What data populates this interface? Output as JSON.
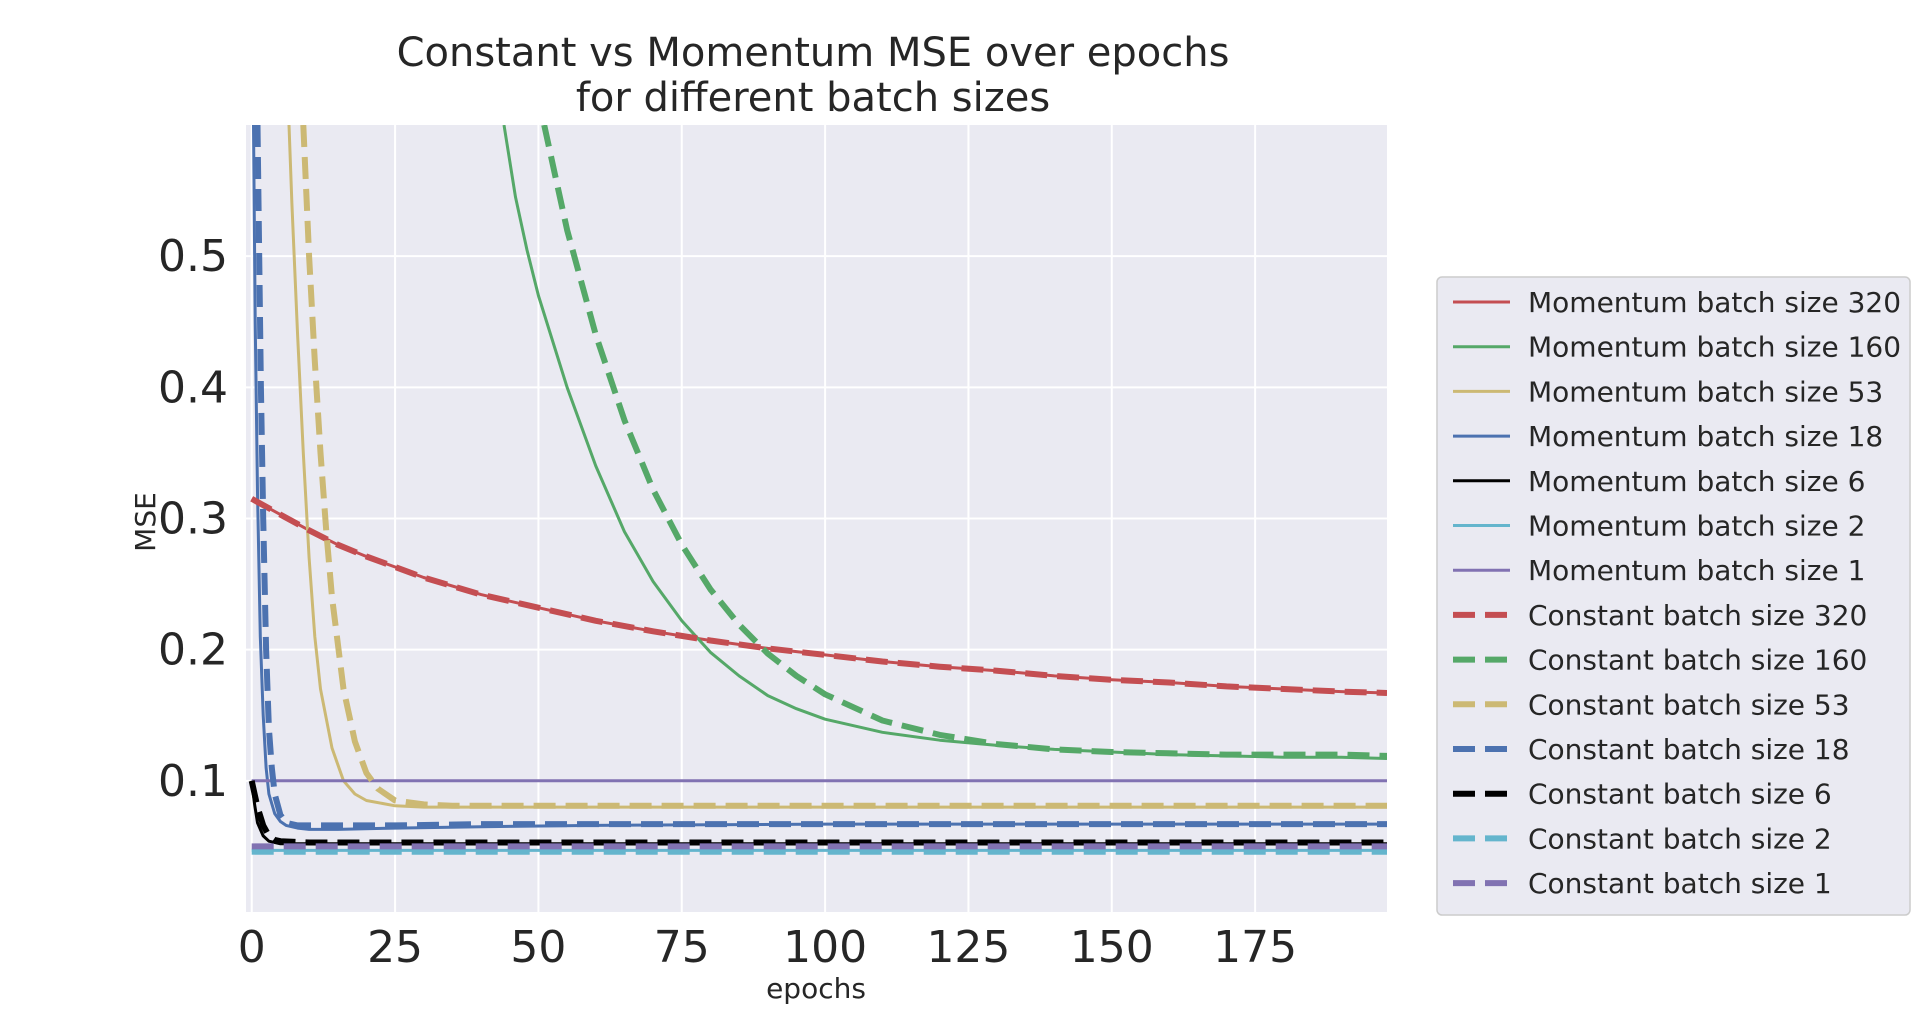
{
  "chart_data": {
    "type": "line",
    "title_lines": [
      "Constant vs Momentum MSE over epochs",
      "for different batch sizes"
    ],
    "xlabel": "epochs",
    "ylabel": "MSE",
    "xlim": [
      -1,
      198
    ],
    "ylim": [
      0.0,
      0.6
    ],
    "xticks": [
      0,
      25,
      50,
      75,
      100,
      125,
      150,
      175
    ],
    "yticks": [
      0.1,
      0.2,
      0.3,
      0.4,
      0.5
    ],
    "grid": true,
    "legend_position": "outside-right",
    "background": "#eaeaf2",
    "series": [
      {
        "name": "Momentum batch size 320",
        "color": "#c44e52",
        "style": "solid",
        "x": [
          0,
          5,
          10,
          15,
          20,
          25,
          30,
          40,
          50,
          60,
          70,
          80,
          90,
          100,
          110,
          120,
          130,
          140,
          150,
          160,
          170,
          180,
          190,
          198
        ],
        "y": [
          0.315,
          0.303,
          0.291,
          0.28,
          0.271,
          0.263,
          0.255,
          0.242,
          0.232,
          0.222,
          0.214,
          0.207,
          0.201,
          0.196,
          0.191,
          0.187,
          0.184,
          0.18,
          0.177,
          0.175,
          0.172,
          0.17,
          0.168,
          0.167
        ]
      },
      {
        "name": "Momentum batch size 160",
        "color": "#55a868",
        "style": "solid",
        "x": [
          44,
          46,
          48,
          50,
          55,
          60,
          65,
          70,
          75,
          80,
          85,
          90,
          95,
          100,
          110,
          120,
          130,
          140,
          150,
          160,
          170,
          180,
          190,
          198
        ],
        "y": [
          0.6,
          0.545,
          0.505,
          0.47,
          0.4,
          0.34,
          0.29,
          0.252,
          0.222,
          0.198,
          0.18,
          0.165,
          0.155,
          0.147,
          0.137,
          0.131,
          0.127,
          0.124,
          0.122,
          0.12,
          0.119,
          0.118,
          0.118,
          0.117
        ]
      },
      {
        "name": "Momentum batch size 53",
        "color": "#ccb974",
        "style": "solid",
        "x": [
          6.5,
          7,
          8,
          9,
          10,
          11,
          12,
          14,
          16,
          18,
          20,
          25,
          30,
          40,
          60,
          100,
          150,
          198
        ],
        "y": [
          0.6,
          0.54,
          0.44,
          0.35,
          0.27,
          0.21,
          0.17,
          0.125,
          0.1,
          0.09,
          0.085,
          0.081,
          0.08,
          0.08,
          0.08,
          0.08,
          0.08,
          0.08
        ]
      },
      {
        "name": "Momentum batch size 18",
        "color": "#4c72b0",
        "style": "solid",
        "x": [
          0.3,
          0.6,
          1.0,
          1.5,
          2.0,
          2.5,
          3,
          4,
          5,
          6,
          8,
          10,
          15,
          25,
          40,
          60,
          100,
          150,
          198
        ],
        "y": [
          0.6,
          0.45,
          0.32,
          0.21,
          0.15,
          0.11,
          0.09,
          0.075,
          0.069,
          0.066,
          0.064,
          0.063,
          0.063,
          0.064,
          0.065,
          0.066,
          0.067,
          0.067,
          0.067
        ]
      },
      {
        "name": "Momentum batch size 6",
        "color": "#000000",
        "style": "solid",
        "x": [
          0,
          0.5,
          1,
          2,
          3,
          5,
          10,
          50,
          100,
          150,
          198
        ],
        "y": [
          0.1,
          0.082,
          0.068,
          0.058,
          0.054,
          0.052,
          0.052,
          0.052,
          0.052,
          0.052,
          0.052
        ]
      },
      {
        "name": "Momentum batch size 2",
        "color": "#64b5cd",
        "style": "solid",
        "x": [
          0,
          198
        ],
        "y": [
          0.047,
          0.047
        ]
      },
      {
        "name": "Momentum batch size 1",
        "color": "#8172b2",
        "style": "solid",
        "x": [
          0,
          198
        ],
        "y": [
          0.1,
          0.1
        ]
      },
      {
        "name": "Constant batch size 320",
        "color": "#c44e52",
        "style": "dashed",
        "x": [
          0,
          5,
          10,
          15,
          20,
          25,
          30,
          40,
          50,
          60,
          70,
          80,
          90,
          100,
          110,
          120,
          130,
          140,
          150,
          160,
          170,
          180,
          190,
          198
        ],
        "y": [
          0.315,
          0.303,
          0.291,
          0.28,
          0.271,
          0.263,
          0.255,
          0.242,
          0.232,
          0.222,
          0.214,
          0.207,
          0.201,
          0.196,
          0.191,
          0.187,
          0.184,
          0.18,
          0.177,
          0.175,
          0.172,
          0.17,
          0.168,
          0.167
        ]
      },
      {
        "name": "Constant batch size 160",
        "color": "#55a868",
        "style": "dashed",
        "x": [
          51,
          53,
          55,
          60,
          65,
          70,
          75,
          80,
          85,
          90,
          95,
          100,
          110,
          120,
          130,
          140,
          150,
          160,
          170,
          180,
          190,
          198
        ],
        "y": [
          0.6,
          0.56,
          0.52,
          0.44,
          0.375,
          0.322,
          0.28,
          0.246,
          0.219,
          0.197,
          0.18,
          0.166,
          0.146,
          0.135,
          0.128,
          0.124,
          0.122,
          0.121,
          0.12,
          0.12,
          0.12,
          0.119
        ]
      },
      {
        "name": "Constant batch size 53",
        "color": "#ccb974",
        "style": "dashed",
        "x": [
          9,
          9.5,
          10,
          11,
          12,
          13,
          14,
          16,
          18,
          20,
          22,
          25,
          30,
          35,
          50,
          100,
          150,
          198
        ],
        "y": [
          0.6,
          0.55,
          0.5,
          0.42,
          0.35,
          0.29,
          0.24,
          0.17,
          0.13,
          0.106,
          0.094,
          0.085,
          0.082,
          0.081,
          0.081,
          0.081,
          0.081,
          0.081
        ]
      },
      {
        "name": "Constant batch size 18",
        "color": "#4c72b0",
        "style": "dashed",
        "x": [
          1.0,
          1.3,
          1.6,
          2.0,
          2.5,
          3.0,
          3.5,
          4,
          5,
          6,
          8,
          10,
          15,
          25,
          40,
          60,
          100,
          150,
          198
        ],
        "y": [
          0.6,
          0.5,
          0.4,
          0.3,
          0.2,
          0.14,
          0.11,
          0.09,
          0.074,
          0.068,
          0.066,
          0.066,
          0.066,
          0.066,
          0.067,
          0.067,
          0.067,
          0.067,
          0.067
        ]
      },
      {
        "name": "Constant batch size 6",
        "color": "#000000",
        "style": "dashed",
        "x": [
          0,
          0.5,
          1,
          2,
          3,
          4,
          5,
          10,
          50,
          100,
          150,
          198
        ],
        "y": [
          0.1,
          0.09,
          0.08,
          0.066,
          0.058,
          0.055,
          0.054,
          0.053,
          0.053,
          0.053,
          0.053,
          0.053
        ]
      },
      {
        "name": "Constant batch size 2",
        "color": "#64b5cd",
        "style": "dashed",
        "x": [
          0,
          198
        ],
        "y": [
          0.046,
          0.046
        ]
      },
      {
        "name": "Constant batch size 1",
        "color": "#8172b2",
        "style": "dashed",
        "x": [
          0,
          198
        ],
        "y": [
          0.05,
          0.05
        ]
      }
    ]
  }
}
